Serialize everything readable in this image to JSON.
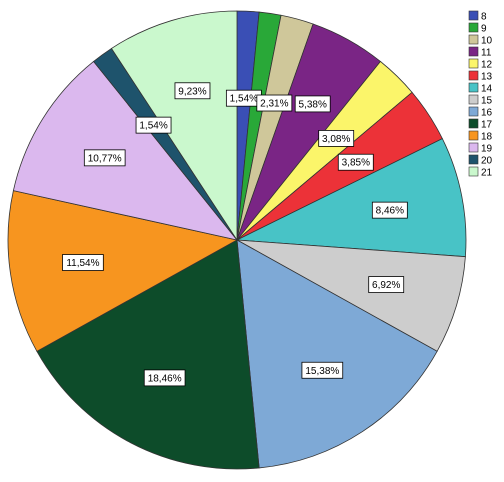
{
  "chart_data": {
    "type": "pie",
    "title": "",
    "legend_position": "top-right",
    "slices": [
      {
        "label": "8",
        "percent": 1.54,
        "label_text": "1,54%",
        "color": "#3a4fb5"
      },
      {
        "label": "9",
        "percent": 1.54,
        "label_text": "",
        "color": "#29a838"
      },
      {
        "label": "10",
        "percent": 2.31,
        "label_text": "2,31%",
        "color": "#cfc79a"
      },
      {
        "label": "11",
        "percent": 5.38,
        "label_text": "5,38%",
        "color": "#7a2585"
      },
      {
        "label": "12",
        "percent": 3.08,
        "label_text": "3,08%",
        "color": "#fbf56a"
      },
      {
        "label": "13",
        "percent": 3.85,
        "label_text": "3,85%",
        "color": "#ec3238"
      },
      {
        "label": "14",
        "percent": 8.46,
        "label_text": "8,46%",
        "color": "#48c3c6"
      },
      {
        "label": "15",
        "percent": 6.92,
        "label_text": "6,92%",
        "color": "#cdcdcd"
      },
      {
        "label": "16",
        "percent": 15.38,
        "label_text": "15,38%",
        "color": "#7ea9d6"
      },
      {
        "label": "17",
        "percent": 18.46,
        "label_text": "18,46%",
        "color": "#0d4c2a"
      },
      {
        "label": "18",
        "percent": 11.54,
        "label_text": "11,54%",
        "color": "#f7951f"
      },
      {
        "label": "19",
        "percent": 10.77,
        "label_text": "10,77%",
        "color": "#dbb8ee"
      },
      {
        "label": "20",
        "percent": 1.54,
        "label_text": "1,54%",
        "color": "#1e536c"
      },
      {
        "label": "21",
        "percent": 9.23,
        "label_text": "9,23%",
        "color": "#caf8cd"
      }
    ]
  }
}
